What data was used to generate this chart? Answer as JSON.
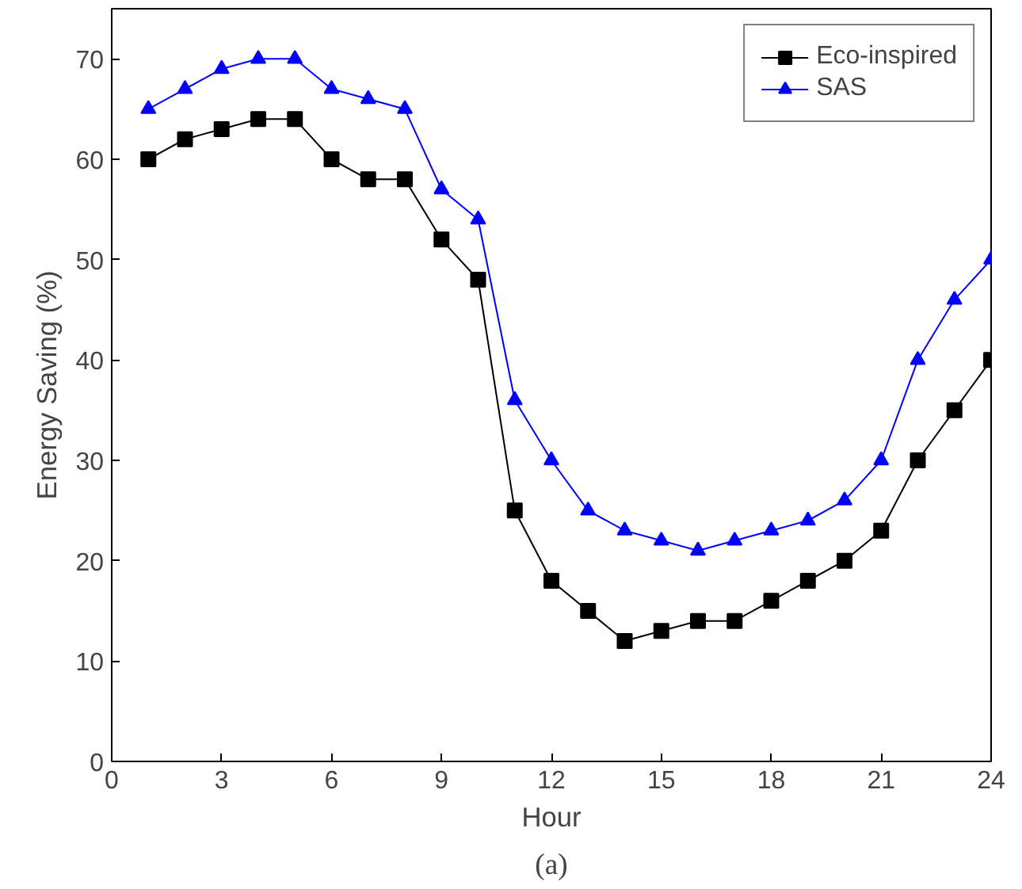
{
  "chart_data": {
    "type": "line",
    "xlabel": "Hour",
    "ylabel": "Energy Saving (%)",
    "annotations": [
      "(a)"
    ],
    "x": [
      1,
      2,
      3,
      4,
      5,
      6,
      7,
      8,
      9,
      10,
      11,
      12,
      13,
      14,
      15,
      16,
      17,
      18,
      19,
      20,
      21,
      22,
      23,
      24
    ],
    "series": [
      {
        "name": "Eco-inspired",
        "color": "#000000",
        "marker": "square",
        "values": [
          60,
          62,
          63,
          64,
          64,
          60,
          58,
          58,
          52,
          48,
          25,
          18,
          15,
          12,
          13,
          14,
          14,
          16,
          18,
          20,
          23,
          30,
          35,
          40
        ]
      },
      {
        "name": "SAS",
        "color": "#0000ff",
        "marker": "triangle",
        "values": [
          65,
          67,
          69,
          70,
          70,
          67,
          66,
          65,
          57,
          54,
          36,
          30,
          25,
          23,
          22,
          21,
          22,
          23,
          24,
          26,
          30,
          40,
          46,
          50
        ]
      }
    ],
    "xlim": [
      0,
      24
    ],
    "xticks": [
      0,
      3,
      6,
      9,
      12,
      15,
      18,
      21,
      24
    ],
    "ylim": [
      0,
      75
    ],
    "yticks": [
      0,
      10,
      20,
      30,
      40,
      50,
      60,
      70
    ],
    "grid": false,
    "legend": "top right",
    "line_style": "solid"
  }
}
